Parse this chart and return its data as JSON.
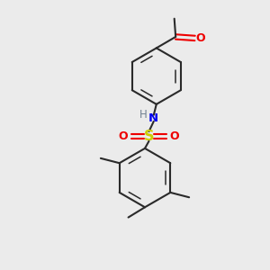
{
  "background_color": "#ebebeb",
  "bond_color": "#2a2a2a",
  "N_color": "#0000ee",
  "O_color": "#ee0000",
  "S_color": "#cccc00",
  "H_color": "#708090",
  "figsize": [
    3.0,
    3.0
  ],
  "dpi": 100,
  "xlim": [
    0,
    10
  ],
  "ylim": [
    0,
    10
  ]
}
